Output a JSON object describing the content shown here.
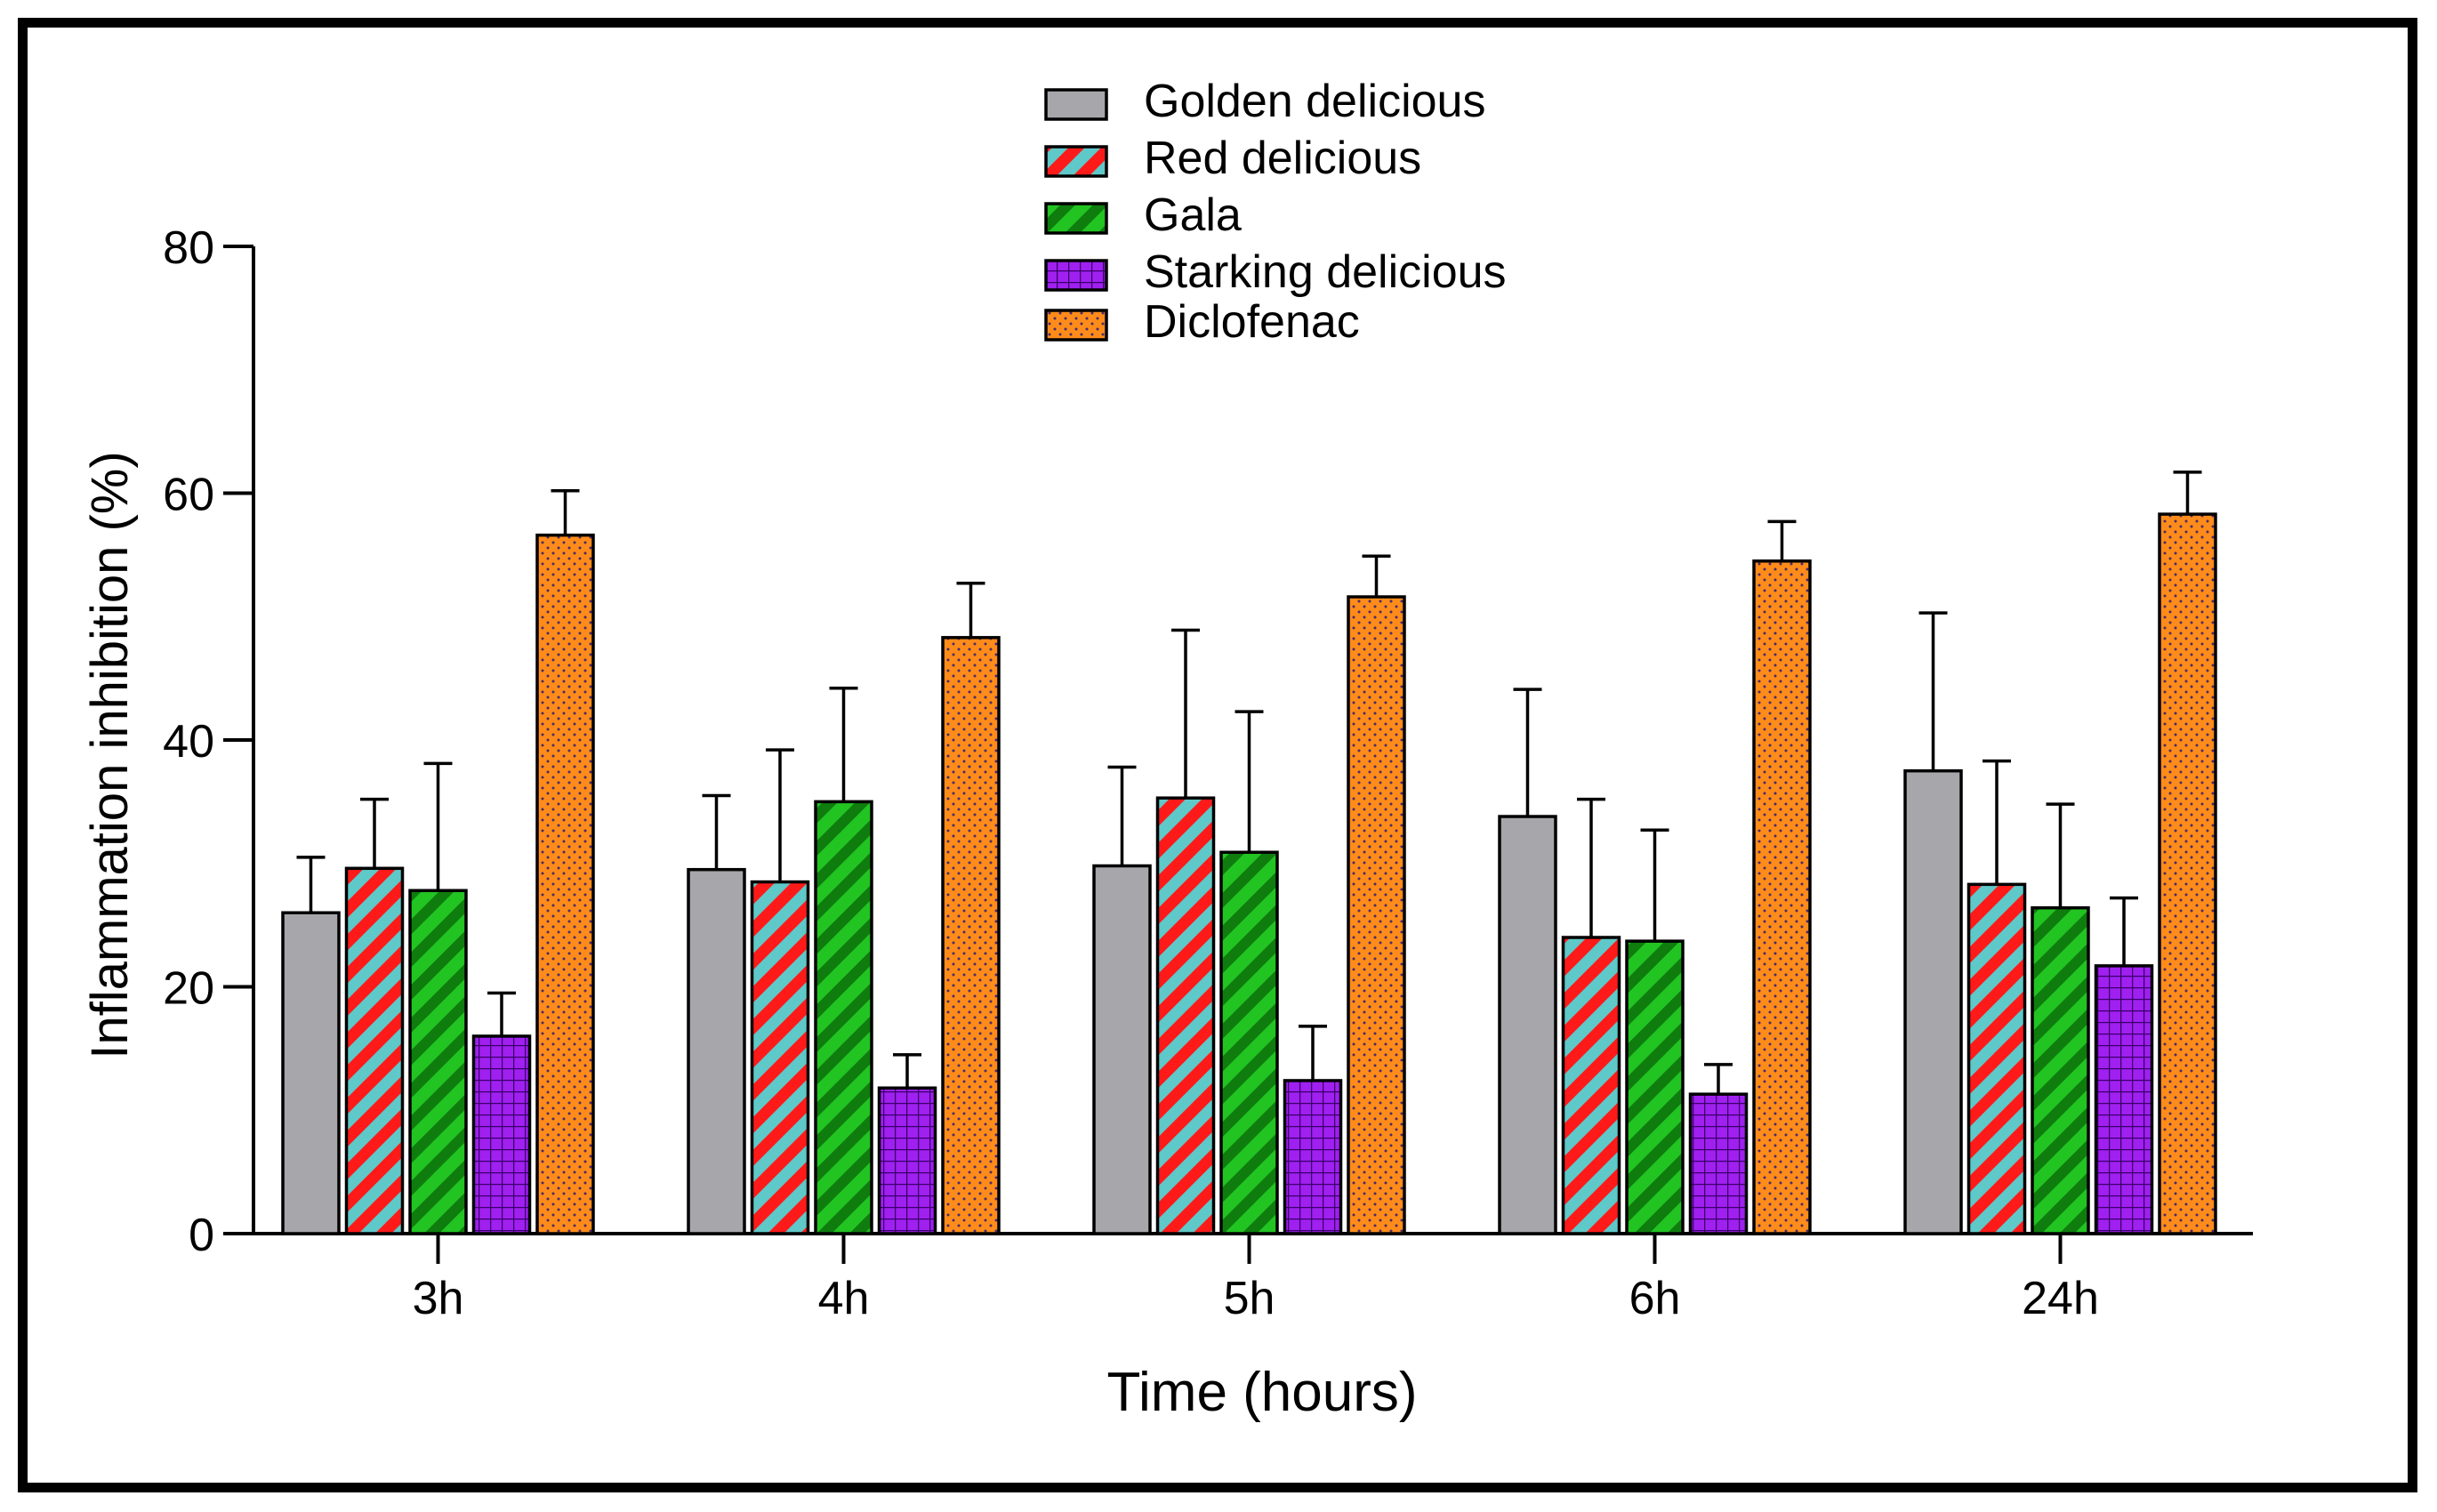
{
  "chart_data": {
    "type": "bar",
    "title": "",
    "xlabel": "Time (hours)",
    "ylabel": "Inflammation inhibition (%)",
    "ylim": [
      0,
      80
    ],
    "yticks": [
      0,
      20,
      40,
      60,
      80
    ],
    "grid": false,
    "legend_position": "top-center",
    "categories": [
      "3h",
      "4h",
      "5h",
      "6h",
      "24h"
    ],
    "series": [
      {
        "name": "Golden delicious",
        "pattern": "solid",
        "color": "#a7a7ab",
        "pattern_color": "#a7a7ab",
        "values": [
          26,
          29.5,
          29.8,
          33.8,
          37.5
        ],
        "errors": [
          4.5,
          6,
          8,
          10.3,
          12.8
        ]
      },
      {
        "name": "Red delicious",
        "pattern": "diagonal-stripes",
        "color": "#ff1a1a",
        "pattern_color": "#5fc8c8",
        "values": [
          29.6,
          28.5,
          35.3,
          24,
          28.3
        ],
        "errors": [
          5.6,
          10.7,
          13.6,
          11.2,
          10
        ]
      },
      {
        "name": "Gala",
        "pattern": "diagonal-stripes",
        "color": "#22c422",
        "pattern_color": "#0e7d0e",
        "values": [
          27.8,
          35,
          30.9,
          23.7,
          26.4
        ],
        "errors": [
          10.3,
          9.2,
          11.4,
          9,
          8.4
        ]
      },
      {
        "name": "Starking delicious",
        "pattern": "grid",
        "color": "#a020f0",
        "pattern_color": "#3a006a",
        "values": [
          16,
          11.8,
          12.4,
          11.3,
          21.7
        ],
        "errors": [
          3.5,
          2.7,
          4.4,
          2.4,
          5.5
        ]
      },
      {
        "name": "Diclofenac",
        "pattern": "dots",
        "color": "#ff8c1a",
        "pattern_color": "#4a2a66",
        "values": [
          56.6,
          48.3,
          51.6,
          54.5,
          58.3
        ],
        "errors": [
          3.6,
          4.4,
          3.3,
          3.2,
          3.4
        ]
      }
    ]
  }
}
